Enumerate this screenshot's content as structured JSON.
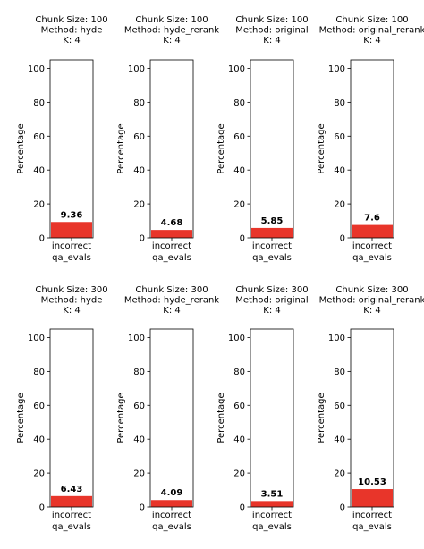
{
  "chart_data": [
    {
      "type": "bar",
      "title": [
        "Chunk Size: 100",
        "Method: hyde",
        "K: 4"
      ],
      "categories": [
        "incorrect"
      ],
      "values": [
        9.36
      ],
      "data_labels": [
        "9.36"
      ],
      "xlabel": "qa_evals",
      "ylabel": "Percentage",
      "ylim": [
        0,
        105
      ],
      "yticks": [
        0,
        20,
        40,
        60,
        80,
        100
      ],
      "bar_color": "#e8352a"
    },
    {
      "type": "bar",
      "title": [
        "Chunk Size: 100",
        "Method: hyde_rerank",
        "K: 4"
      ],
      "categories": [
        "incorrect"
      ],
      "values": [
        4.68
      ],
      "data_labels": [
        "4.68"
      ],
      "xlabel": "qa_evals",
      "ylabel": "Percentage",
      "ylim": [
        0,
        105
      ],
      "yticks": [
        0,
        20,
        40,
        60,
        80,
        100
      ],
      "bar_color": "#e8352a"
    },
    {
      "type": "bar",
      "title": [
        "Chunk Size: 100",
        "Method: original",
        "K: 4"
      ],
      "categories": [
        "incorrect"
      ],
      "values": [
        5.85
      ],
      "data_labels": [
        "5.85"
      ],
      "xlabel": "qa_evals",
      "ylabel": "Percentage",
      "ylim": [
        0,
        105
      ],
      "yticks": [
        0,
        20,
        40,
        60,
        80,
        100
      ],
      "bar_color": "#e8352a"
    },
    {
      "type": "bar",
      "title": [
        "Chunk Size: 100",
        "Method: original_rerank",
        "K: 4"
      ],
      "categories": [
        "incorrect"
      ],
      "values": [
        7.6
      ],
      "data_labels": [
        "7.6"
      ],
      "xlabel": "qa_evals",
      "ylabel": "Percentage",
      "ylim": [
        0,
        105
      ],
      "yticks": [
        0,
        20,
        40,
        60,
        80,
        100
      ],
      "bar_color": "#e8352a"
    },
    {
      "type": "bar",
      "title": [
        "Chunk Size: 300",
        "Method: hyde",
        "K: 4"
      ],
      "categories": [
        "incorrect"
      ],
      "values": [
        6.43
      ],
      "data_labels": [
        "6.43"
      ],
      "xlabel": "qa_evals",
      "ylabel": "Percentage",
      "ylim": [
        0,
        105
      ],
      "yticks": [
        0,
        20,
        40,
        60,
        80,
        100
      ],
      "bar_color": "#e8352a"
    },
    {
      "type": "bar",
      "title": [
        "Chunk Size: 300",
        "Method: hyde_rerank",
        "K: 4"
      ],
      "categories": [
        "incorrect"
      ],
      "values": [
        4.09
      ],
      "data_labels": [
        "4.09"
      ],
      "xlabel": "qa_evals",
      "ylabel": "Percentage",
      "ylim": [
        0,
        105
      ],
      "yticks": [
        0,
        20,
        40,
        60,
        80,
        100
      ],
      "bar_color": "#e8352a"
    },
    {
      "type": "bar",
      "title": [
        "Chunk Size: 300",
        "Method: original",
        "K: 4"
      ],
      "categories": [
        "incorrect"
      ],
      "values": [
        3.51
      ],
      "data_labels": [
        "3.51"
      ],
      "xlabel": "qa_evals",
      "ylabel": "Percentage",
      "ylim": [
        0,
        105
      ],
      "yticks": [
        0,
        20,
        40,
        60,
        80,
        100
      ],
      "bar_color": "#e8352a"
    },
    {
      "type": "bar",
      "title": [
        "Chunk Size: 300",
        "Method: original_rerank",
        "K: 4"
      ],
      "categories": [
        "incorrect"
      ],
      "values": [
        10.53
      ],
      "data_labels": [
        "10.53"
      ],
      "xlabel": "qa_evals",
      "ylabel": "Percentage",
      "ylim": [
        0,
        105
      ],
      "yticks": [
        0,
        20,
        40,
        60,
        80,
        100
      ],
      "bar_color": "#e8352a"
    }
  ]
}
